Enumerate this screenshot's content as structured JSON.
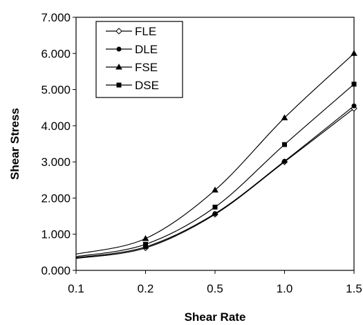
{
  "chart_data": {
    "type": "line",
    "xlabel": "Shear Rate",
    "ylabel": "Shear Stress",
    "categories": [
      "0.1",
      "0.2",
      "0.5",
      "1.0",
      "1.5"
    ],
    "ylim": [
      0,
      7
    ],
    "yticks": [
      "0.000",
      "1.000",
      "2.000",
      "3.000",
      "4.000",
      "5.000",
      "6.000",
      "7.000"
    ],
    "legend_position": "top-left",
    "grid": false,
    "series": [
      {
        "name": "FLE",
        "marker": "diamond",
        "values": [
          0.33,
          0.62,
          1.55,
          3.0,
          4.48
        ]
      },
      {
        "name": "DLE",
        "marker": "circle",
        "values": [
          0.35,
          0.65,
          1.57,
          3.02,
          4.55
        ]
      },
      {
        "name": "FSE",
        "marker": "triangle",
        "values": [
          0.45,
          0.88,
          2.22,
          4.22,
          6.0
        ]
      },
      {
        "name": "DSE",
        "marker": "square",
        "values": [
          0.38,
          0.72,
          1.75,
          3.48,
          5.15
        ]
      }
    ]
  }
}
